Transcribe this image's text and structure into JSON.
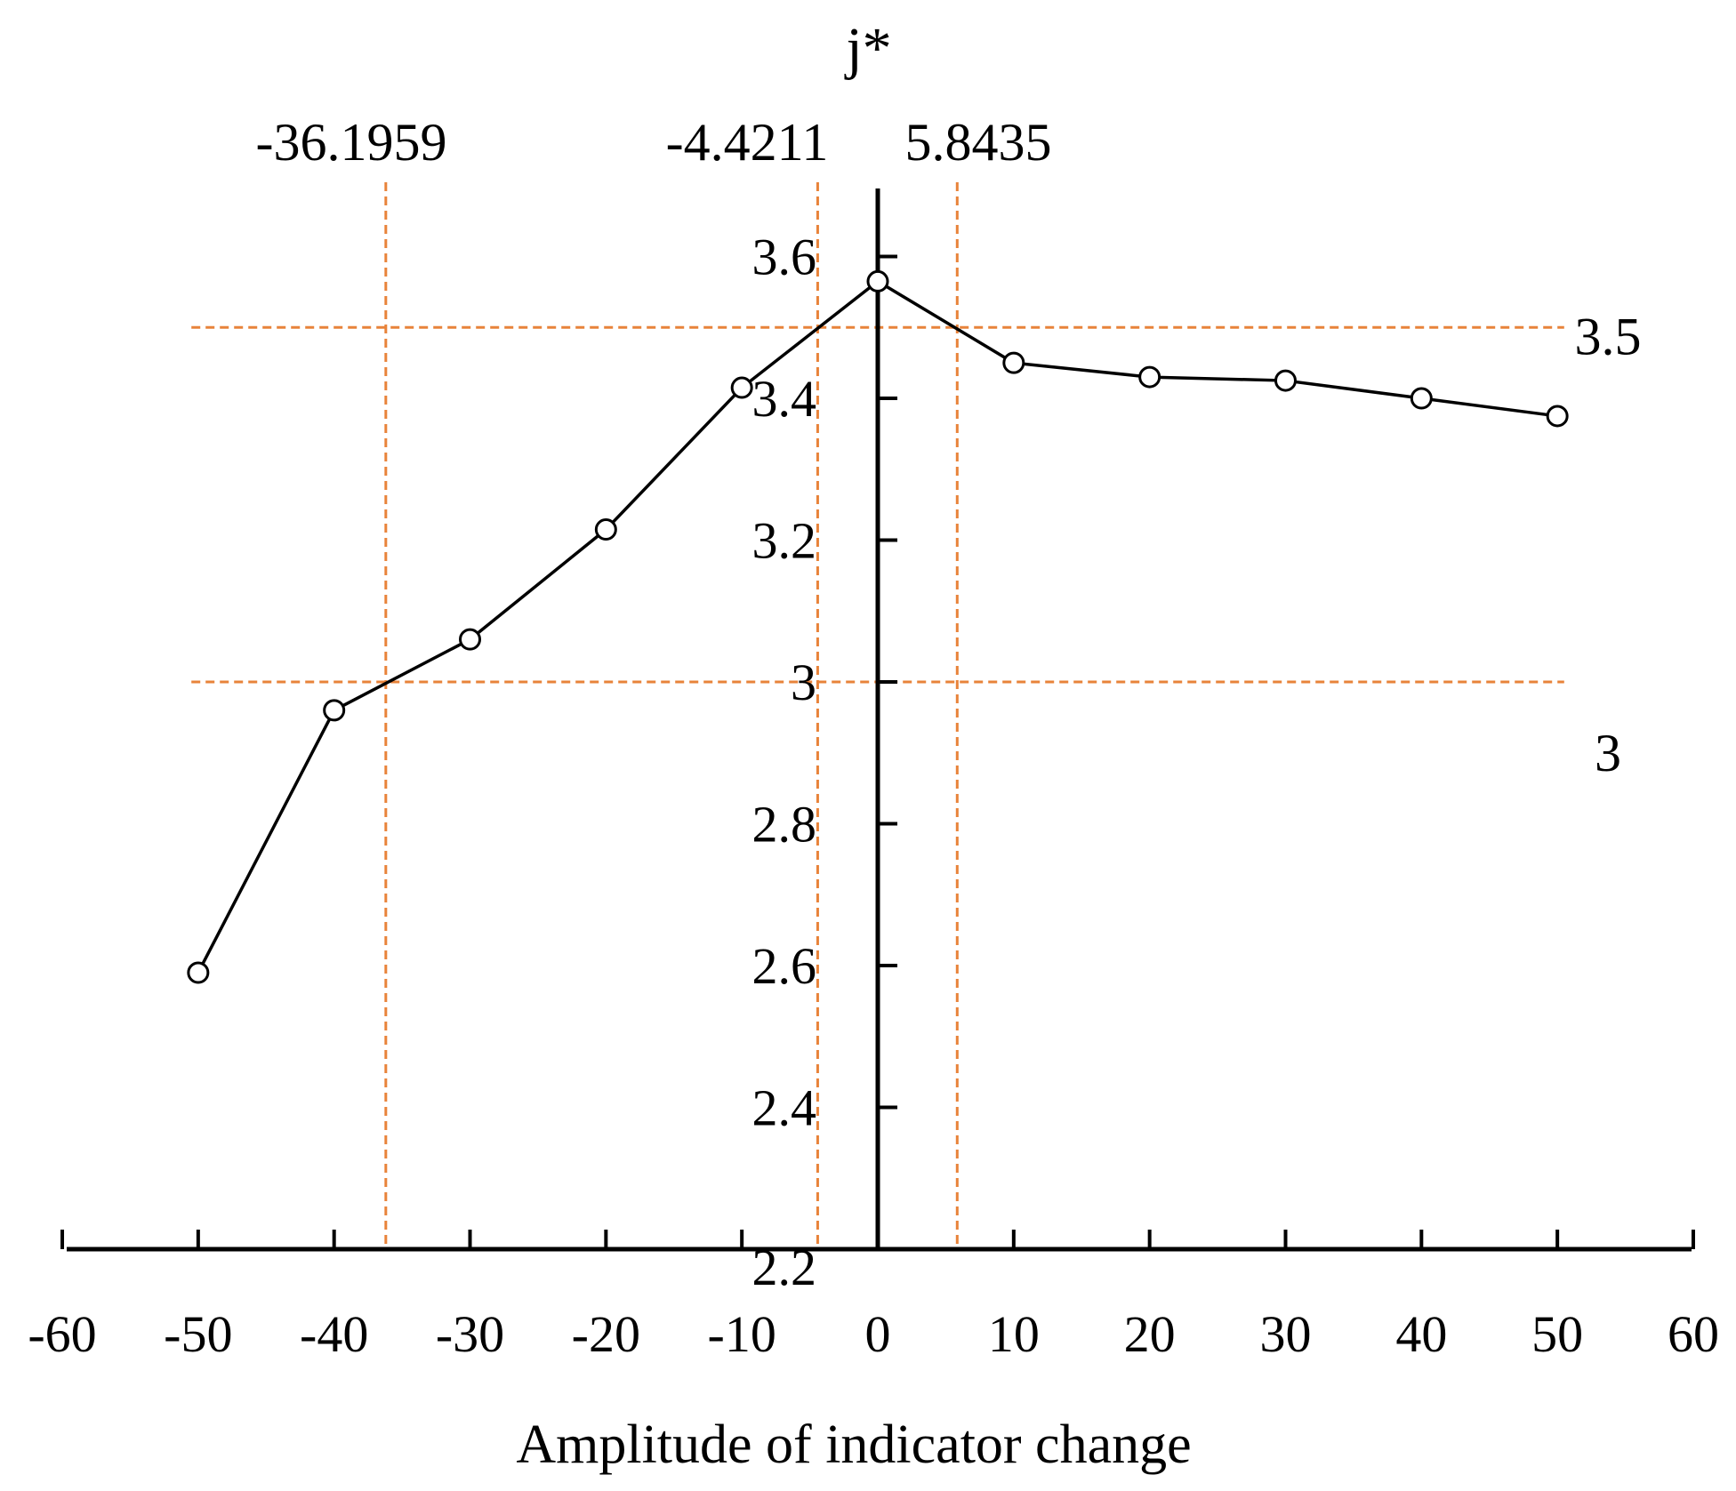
{
  "chart_data": {
    "type": "line",
    "title": "",
    "ylabel": "j*",
    "xlabel": "Amplitude of indicator change",
    "xlim": [
      -60,
      60
    ],
    "ylim": [
      2.2,
      3.7
    ],
    "x_ticks": [
      -60,
      -50,
      -40,
      -30,
      -20,
      -10,
      0,
      10,
      20,
      30,
      40,
      50,
      60
    ],
    "x_tick_labels": [
      "-60",
      "-50",
      "-40",
      "-30",
      "-20",
      "-10",
      "0",
      "10",
      "20",
      "30",
      "40",
      "50",
      "60"
    ],
    "y_ticks": [
      2.2,
      2.4,
      2.6,
      2.8,
      3.0,
      3.2,
      3.4,
      3.6
    ],
    "y_tick_labels": [
      "2.2",
      "2.4",
      "2.6",
      "2.8",
      "3",
      "3.2",
      "3.4",
      "3.6"
    ],
    "series": [
      {
        "name": "j*",
        "x": [
          -50,
          -40,
          -30,
          -20,
          -10,
          0,
          10,
          20,
          30,
          40,
          50
        ],
        "y": [
          2.59,
          2.96,
          3.06,
          3.215,
          3.415,
          3.565,
          3.45,
          3.43,
          3.425,
          3.4,
          3.375
        ]
      }
    ],
    "reference_lines": {
      "horizontal": [
        {
          "y": 3.5,
          "label": "3.5"
        },
        {
          "y": 3.0,
          "label": "3"
        }
      ],
      "vertical": [
        {
          "x": -36.1959,
          "label": "-36.1959"
        },
        {
          "x": -4.4211,
          "label": "-4.4211"
        },
        {
          "x": 5.8435,
          "label": "5.8435"
        }
      ]
    },
    "colors": {
      "line": "#000000",
      "reference": "#E8833A"
    }
  }
}
